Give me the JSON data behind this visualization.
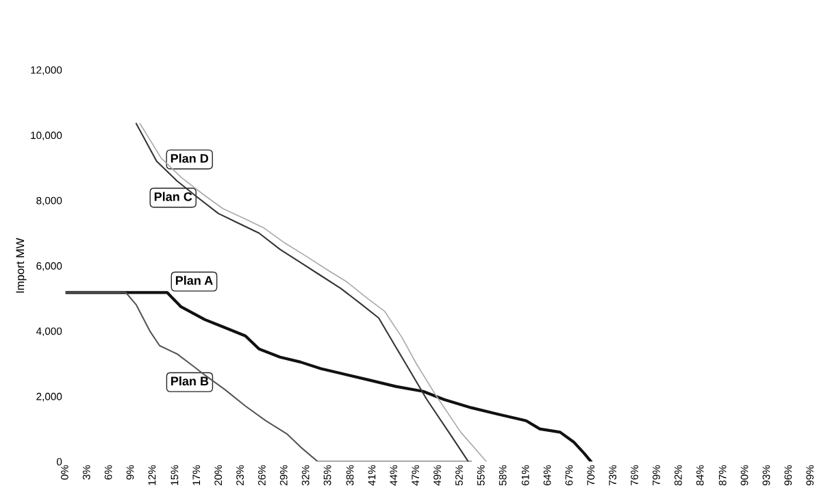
{
  "chart_data": {
    "type": "line",
    "ylabel": "Import MW",
    "grid": false,
    "legend": false,
    "marker": "none",
    "line_style": "solid",
    "xlim": [
      0,
      99
    ],
    "ylim": [
      0,
      12000
    ],
    "yticks": [
      {
        "value": 0,
        "label": "0"
      },
      {
        "value": 2000,
        "label": "2,000"
      },
      {
        "value": 4000,
        "label": "4,000"
      },
      {
        "value": 6000,
        "label": "6,000"
      },
      {
        "value": 8000,
        "label": "8,000"
      },
      {
        "value": 10000,
        "label": "10,000"
      },
      {
        "value": 12000,
        "label": "12,000"
      }
    ],
    "xticks": [
      {
        "value": 0,
        "label": "0%"
      },
      {
        "value": 2.9,
        "label": "3%"
      },
      {
        "value": 5.8,
        "label": "6%"
      },
      {
        "value": 8.7,
        "label": "9%"
      },
      {
        "value": 11.6,
        "label": "12%"
      },
      {
        "value": 14.6,
        "label": "15%"
      },
      {
        "value": 17.5,
        "label": "17%"
      },
      {
        "value": 20.4,
        "label": "20%"
      },
      {
        "value": 23.3,
        "label": "23%"
      },
      {
        "value": 26.2,
        "label": "26%"
      },
      {
        "value": 29.1,
        "label": "29%"
      },
      {
        "value": 32.0,
        "label": "32%"
      },
      {
        "value": 34.9,
        "label": "35%"
      },
      {
        "value": 37.9,
        "label": "38%"
      },
      {
        "value": 40.8,
        "label": "41%"
      },
      {
        "value": 43.7,
        "label": "44%"
      },
      {
        "value": 46.6,
        "label": "47%"
      },
      {
        "value": 49.5,
        "label": "49%"
      },
      {
        "value": 52.4,
        "label": "52%"
      },
      {
        "value": 55.3,
        "label": "55%"
      },
      {
        "value": 58.2,
        "label": "58%"
      },
      {
        "value": 61.2,
        "label": "61%"
      },
      {
        "value": 64.1,
        "label": "64%"
      },
      {
        "value": 67.0,
        "label": "67%"
      },
      {
        "value": 69.9,
        "label": "70%"
      },
      {
        "value": 72.8,
        "label": "73%"
      },
      {
        "value": 75.7,
        "label": "76%"
      },
      {
        "value": 78.6,
        "label": "79%"
      },
      {
        "value": 81.5,
        "label": "82%"
      },
      {
        "value": 84.4,
        "label": "84%"
      },
      {
        "value": 87.4,
        "label": "87%"
      },
      {
        "value": 90.3,
        "label": "90%"
      },
      {
        "value": 93.2,
        "label": "93%"
      },
      {
        "value": 96.1,
        "label": "96%"
      },
      {
        "value": 99.0,
        "label": "99%"
      }
    ],
    "series": [
      {
        "name": "Plan A",
        "color": "#111111",
        "x": [
          0,
          13.5,
          15.3,
          18.5,
          21.2,
          23.9,
          25.7,
          28.5,
          31.2,
          33.9,
          36.6,
          40.3,
          43.9,
          47.5,
          50.3,
          53.9,
          57.5,
          61.2,
          63.0,
          65.7,
          67.5,
          68.9,
          69.8
        ],
        "values": [
          5180,
          5180,
          4750,
          4350,
          4100,
          3850,
          3450,
          3200,
          3050,
          2850,
          2700,
          2500,
          2300,
          2150,
          1900,
          1650,
          1450,
          1250,
          1000,
          900,
          600,
          250,
          0
        ]
      },
      {
        "name": "Plan B",
        "color": "#555555",
        "x": [
          0,
          8.0,
          9.4,
          11.2,
          12.5,
          14.8,
          17.1,
          18.5,
          21.2,
          23.9,
          26.6,
          29.4,
          31.2,
          33.5,
          53.9
        ],
        "values": [
          5180,
          5180,
          4800,
          4000,
          3550,
          3300,
          2900,
          2650,
          2200,
          1700,
          1250,
          850,
          450,
          0,
          0
        ]
      },
      {
        "name": "Plan C",
        "color": "#333333",
        "x": [
          9.4,
          12.1,
          14.8,
          17.5,
          20.3,
          23.0,
          25.7,
          28.5,
          31.2,
          33.9,
          36.6,
          39.4,
          41.6,
          43.9,
          45.7,
          48.0,
          51.2,
          53.5
        ],
        "values": [
          10350,
          9200,
          8600,
          8100,
          7600,
          7300,
          7000,
          6500,
          6100,
          5700,
          5300,
          4800,
          4400,
          3500,
          2800,
          1900,
          800,
          0
        ]
      },
      {
        "name": "Plan D",
        "color": "#aaaaaa",
        "x": [
          9.9,
          12.7,
          15.4,
          18.2,
          20.9,
          23.7,
          26.4,
          29.1,
          31.9,
          34.6,
          37.4,
          40.1,
          42.4,
          44.7,
          46.6,
          49.0,
          52.5,
          55.9
        ],
        "values": [
          10350,
          9300,
          8700,
          8200,
          7750,
          7450,
          7150,
          6700,
          6300,
          5900,
          5500,
          5000,
          4600,
          3800,
          3000,
          2100,
          900,
          0
        ]
      }
    ]
  }
}
